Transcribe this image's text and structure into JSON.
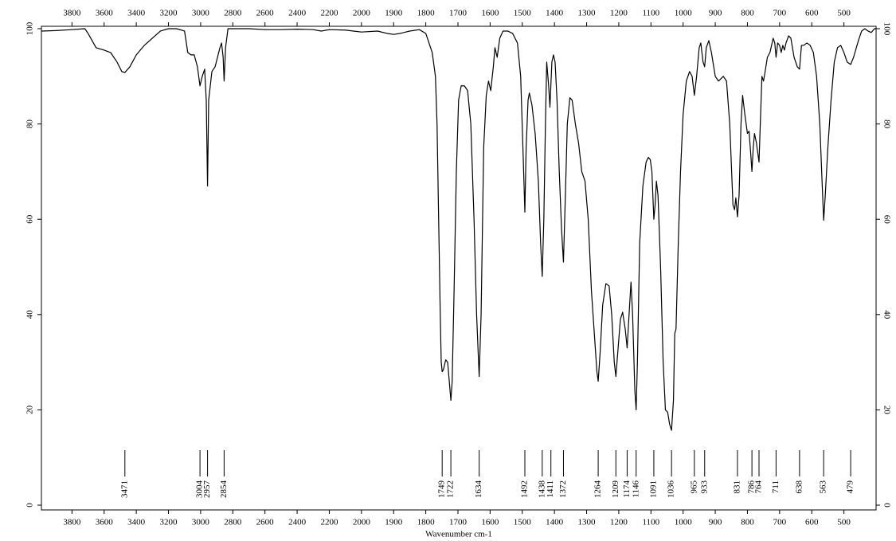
{
  "chart_data": {
    "type": "line",
    "x_label": "Wavenumber cm-1",
    "xlim": [
      3990,
      400
    ],
    "x_break": 2000,
    "x_break_scale": 0.5,
    "xticks": [
      3800,
      3600,
      3400,
      3200,
      3000,
      2800,
      2600,
      2400,
      2200,
      2000,
      1900,
      1800,
      1700,
      1600,
      1500,
      1400,
      1300,
      1200,
      1100,
      1000,
      900,
      800,
      700,
      600,
      500
    ],
    "ylim": [
      -1,
      100.5
    ],
    "yticks": [
      0,
      20,
      40,
      60,
      80,
      100
    ],
    "peaks": [
      3471,
      3004,
      2957,
      2854,
      1749,
      1722,
      1634,
      1492,
      1438,
      1411,
      1372,
      1264,
      1209,
      1174,
      1146,
      1091,
      1036,
      965,
      933,
      831,
      786,
      764,
      711,
      638,
      563,
      479
    ],
    "series": [
      {
        "color": "#000000",
        "x": [
          3990,
          3900,
          3800,
          3720,
          3700,
          3650,
          3600,
          3560,
          3520,
          3490,
          3471,
          3440,
          3400,
          3350,
          3300,
          3250,
          3200,
          3150,
          3100,
          3080,
          3060,
          3040,
          3020,
          3004,
          2990,
          2975,
          2965,
          2957,
          2950,
          2930,
          2910,
          2880,
          2870,
          2860,
          2854,
          2845,
          2830,
          2800,
          2700,
          2600,
          2500,
          2400,
          2300,
          2250,
          2200,
          2100,
          2050,
          2000,
          1950,
          1920,
          1900,
          1880,
          1850,
          1820,
          1800,
          1790,
          1780,
          1770,
          1765,
          1760,
          1755,
          1752,
          1749,
          1745,
          1738,
          1732,
          1727,
          1722,
          1718,
          1712,
          1705,
          1698,
          1690,
          1680,
          1670,
          1660,
          1650,
          1642,
          1634,
          1628,
          1620,
          1612,
          1605,
          1598,
          1590,
          1585,
          1578,
          1570,
          1560,
          1545,
          1530,
          1515,
          1505,
          1498,
          1492,
          1488,
          1482,
          1478,
          1470,
          1460,
          1450,
          1443,
          1438,
          1433,
          1428,
          1424,
          1418,
          1414,
          1408,
          1403,
          1398,
          1392,
          1385,
          1378,
          1372,
          1366,
          1360,
          1352,
          1345,
          1335,
          1325,
          1315,
          1305,
          1295,
          1285,
          1275,
          1268,
          1264,
          1258,
          1250,
          1240,
          1230,
          1222,
          1214,
          1209,
          1202,
          1195,
          1188,
          1180,
          1174,
          1168,
          1162,
          1157,
          1150,
          1146,
          1142,
          1135,
          1125,
          1115,
          1108,
          1102,
          1097,
          1091,
          1087,
          1083,
          1078,
          1070,
          1062,
          1055,
          1048,
          1042,
          1036,
          1030,
          1026,
          1022,
          1015,
          1008,
          1000,
          990,
          980,
          972,
          965,
          958,
          950,
          945,
          938,
          933,
          928,
          920,
          912,
          900,
          890,
          875,
          865,
          855,
          845,
          840,
          836,
          831,
          826,
          820,
          815,
          808,
          800,
          795,
          790,
          786,
          782,
          778,
          772,
          764,
          760,
          755,
          750,
          745,
          738,
          730,
          720,
          715,
          711,
          706,
          700,
          695,
          690,
          685,
          680,
          672,
          665,
          655,
          645,
          638,
          632,
          625,
          615,
          605,
          595,
          585,
          575,
          568,
          563,
          558,
          550,
          540,
          530,
          520,
          510,
          500,
          490,
          479,
          470,
          455,
          445,
          435,
          425,
          415,
          405,
          400
        ],
        "values": [
          99.5,
          99.6,
          99.8,
          100,
          99,
          96,
          95.5,
          95,
          93,
          91,
          90.8,
          92,
          94.5,
          96.5,
          98,
          99.5,
          100,
          100,
          99.5,
          95,
          94.5,
          94.5,
          92,
          88,
          90,
          91.5,
          85,
          67,
          85,
          91,
          92,
          96,
          97,
          94,
          89,
          96,
          100,
          100,
          100,
          99.8,
          99.8,
          99.9,
          99.8,
          99.5,
          99.8,
          99.7,
          99.5,
          99.3,
          99.5,
          99,
          98.8,
          99,
          99.5,
          99.8,
          99,
          97,
          95,
          90,
          80,
          60,
          40,
          30,
          28,
          28.5,
          30.5,
          30,
          26,
          22,
          26,
          45,
          70,
          85,
          88,
          88,
          87,
          80,
          60,
          40,
          27,
          40,
          75,
          86,
          89,
          87,
          92,
          96,
          94,
          98,
          99.5,
          99.5,
          99,
          97,
          90,
          75,
          61.5,
          75,
          85,
          86.5,
          84,
          78,
          68,
          55,
          48,
          60,
          80,
          93,
          88,
          83.5,
          93,
          94.5,
          93,
          85,
          70,
          58,
          51,
          65,
          80,
          85.5,
          85,
          80,
          76,
          70,
          68,
          60,
          45,
          35,
          28,
          26,
          32,
          42,
          46.5,
          46,
          40,
          30,
          27,
          33,
          39,
          40.5,
          37,
          33,
          40,
          46.8,
          40,
          24,
          20,
          30,
          55,
          67,
          72,
          73,
          72.5,
          70,
          60,
          63,
          68,
          65,
          50,
          30,
          20,
          19.5,
          17,
          15.7,
          22,
          36,
          37,
          55,
          70,
          82,
          89,
          91,
          90,
          86,
          90,
          96,
          97,
          93,
          92,
          96,
          97.5,
          95,
          90,
          89,
          90,
          89,
          80,
          63,
          62,
          64.5,
          60.5,
          65,
          80,
          86,
          82,
          78,
          78.5,
          74,
          70,
          75,
          78,
          76,
          72,
          80,
          90,
          89,
          91,
          94,
          95,
          98,
          97,
          94,
          97,
          96.5,
          95,
          96.5,
          95.5,
          97,
          98.5,
          98,
          94,
          92,
          91.5,
          96.5,
          96.5,
          97,
          96.5,
          95,
          90,
          80,
          68,
          59.8,
          65,
          75,
          85,
          93,
          96,
          96.5,
          95,
          93,
          92.5,
          94,
          97.5,
          99.5,
          100,
          99.5,
          99.2,
          100,
          100
        ]
      }
    ]
  }
}
